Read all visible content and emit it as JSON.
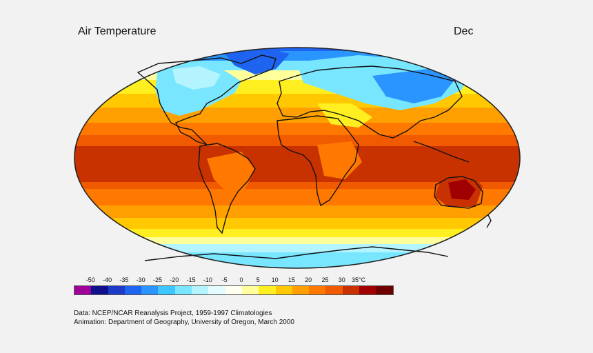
{
  "title": "Air Temperature",
  "month": "Dec",
  "legend": {
    "labels": [
      "-50",
      "-40",
      "-35",
      "-30",
      "-25",
      "-20",
      "-15",
      "-10",
      "-5",
      "0",
      "5",
      "10",
      "15",
      "20",
      "25",
      "30",
      "35°C"
    ],
    "colors": [
      "#a0009a",
      "#10108c",
      "#1c3cc8",
      "#1e64f0",
      "#2a94ff",
      "#3cc8ff",
      "#78e6ff",
      "#b4f4ff",
      "#e4fcff",
      "#fffff0",
      "#ffff9c",
      "#ffee20",
      "#ffc800",
      "#ffa000",
      "#ff7800",
      "#f05a00",
      "#c83200",
      "#a00000",
      "#6e0000"
    ]
  },
  "credits": {
    "line1": "Data:  NCEP/NCAR Reanalysis Project, 1959-1997 Climatologies",
    "line2": "Animation:  Department of Geography, University of Oregon, March 2000"
  }
}
